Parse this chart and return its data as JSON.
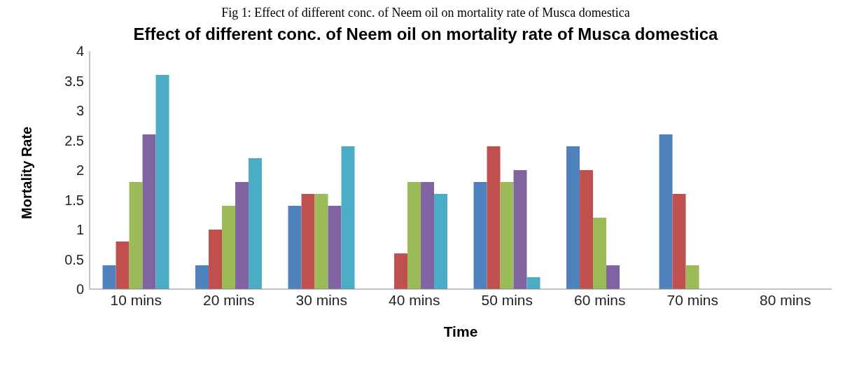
{
  "chart_data": {
    "type": "bar",
    "title": "Effect of different conc. of Neem oil on mortality rate of Musca domestica",
    "annotations": [
      "Fig 1: Effect of different conc. of Neem oil on mortality rate of Musca domestica"
    ],
    "xlabel": "Time",
    "ylabel": "Mortality Rate",
    "categories": [
      "10 mins",
      "20 mins",
      "30 mins",
      "40 mins",
      "50 mins",
      "60 mins",
      "70 mins",
      "80 mins"
    ],
    "series": [
      {
        "color": "#4f81bd",
        "values": [
          0.4,
          0.4,
          1.4,
          0,
          1.8,
          2.4,
          2.6,
          0
        ]
      },
      {
        "color": "#c0504d",
        "values": [
          0.8,
          1.0,
          1.6,
          0.6,
          2.4,
          2.0,
          1.6,
          0
        ]
      },
      {
        "color": "#9bbb59",
        "values": [
          1.8,
          1.4,
          1.6,
          1.8,
          1.8,
          1.2,
          0.4,
          0
        ]
      },
      {
        "color": "#8064a2",
        "values": [
          2.6,
          1.8,
          1.4,
          1.8,
          2.0,
          0.4,
          0,
          0
        ]
      },
      {
        "color": "#4bacc6",
        "values": [
          3.6,
          2.2,
          2.4,
          1.6,
          0.2,
          0,
          0,
          0
        ]
      }
    ],
    "ylim": [
      0,
      4
    ],
    "yticks": [
      0,
      0.5,
      1,
      1.5,
      2,
      2.5,
      3,
      3.5,
      4
    ],
    "grid": false,
    "legend": false
  }
}
